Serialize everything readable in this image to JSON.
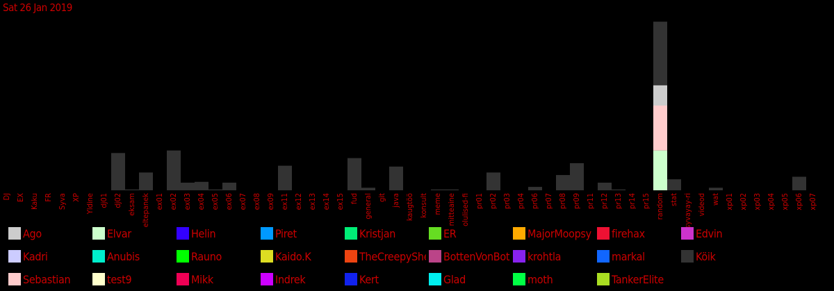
{
  "date_label": "Sat 26 Jan 2019",
  "chart_data": {
    "type": "bar",
    "stacked": true,
    "categories": [
      "DJ",
      "EX",
      "Kaku",
      "FR",
      "Syva",
      "XP",
      "Yldine",
      "dj01",
      "dj02",
      "eksam",
      "eltepanek",
      "ex01",
      "ex02",
      "ex03",
      "ex04",
      "ex05",
      "ex06",
      "ex07",
      "ex08",
      "ex09",
      "ex11",
      "ex12",
      "ex13",
      "ex14",
      "ex15",
      "fud",
      "general",
      "git",
      "java",
      "kaugtöö",
      "konsult",
      "meme",
      "mitteaine",
      "olulised-fi",
      "pr01",
      "pr02",
      "pr03",
      "pr04",
      "pr06",
      "pr07",
      "pr08",
      "pr09",
      "pr11",
      "pr12",
      "pr13",
      "pr14",
      "pr15",
      "random",
      "stat",
      "syvayay-ri",
      "videod",
      "wat",
      "xp01",
      "xp02",
      "xp03",
      "xp04",
      "xp05",
      "xp06",
      "xp07"
    ],
    "series": [
      {
        "name": "Köik",
        "color": "#333333",
        "values": [
          0,
          0,
          0,
          0,
          0,
          0,
          0,
          0,
          44,
          1,
          21,
          0,
          47,
          9,
          10,
          1,
          9,
          0,
          0,
          0,
          29,
          0,
          0,
          0,
          0,
          38,
          3,
          0,
          28,
          0,
          0,
          1,
          1,
          0,
          0,
          21,
          0,
          0,
          4,
          0,
          18,
          32,
          0,
          9,
          1,
          0,
          0,
          75,
          13,
          0,
          0,
          3,
          0,
          0,
          0,
          0,
          0,
          16,
          0
        ]
      },
      {
        "name": "Ago",
        "color": "#cccccc",
        "values": [
          0,
          0,
          0,
          0,
          0,
          0,
          0,
          0,
          0,
          0,
          0,
          0,
          0,
          0,
          0,
          0,
          0,
          0,
          0,
          0,
          0,
          0,
          0,
          0,
          0,
          0,
          0,
          0,
          0,
          0,
          0,
          0,
          0,
          0,
          0,
          0,
          0,
          0,
          0,
          0,
          0,
          0,
          0,
          0,
          0,
          0,
          0,
          24,
          0,
          0,
          0,
          0,
          0,
          0,
          0,
          0,
          0,
          0,
          0
        ]
      },
      {
        "name": "Sebastian",
        "color": "#ffcccc",
        "values": [
          0,
          0,
          0,
          0,
          0,
          0,
          0,
          0,
          0,
          0,
          0,
          0,
          0,
          0,
          0,
          0,
          0,
          0,
          0,
          0,
          0,
          0,
          0,
          0,
          0,
          0,
          0,
          0,
          0,
          0,
          0,
          0,
          0,
          0,
          0,
          0,
          0,
          0,
          0,
          0,
          0,
          0,
          0,
          0,
          0,
          0,
          0,
          53,
          0,
          0,
          0,
          0,
          0,
          0,
          0,
          0,
          0,
          0,
          0
        ]
      },
      {
        "name": "Elvar",
        "color": "#ccffcc",
        "values": [
          0,
          0,
          0,
          0,
          0,
          0,
          0,
          0,
          0,
          0,
          0,
          0,
          0,
          0,
          0,
          0,
          0,
          0,
          0,
          0,
          0,
          0,
          0,
          0,
          0,
          0,
          0,
          0,
          0,
          0,
          0,
          0,
          0,
          0,
          0,
          0,
          0,
          0,
          0,
          0,
          0,
          0,
          0,
          0,
          0,
          0,
          0,
          47,
          0,
          0,
          0,
          0,
          0,
          0,
          0,
          0,
          0,
          0,
          0
        ]
      }
    ],
    "stack_order": [
      "Elvar",
      "Sebastian",
      "Ago",
      "Köik"
    ],
    "ylim": [
      0,
      200
    ]
  },
  "legend": [
    {
      "name": "Ago",
      "color": "#cccccc"
    },
    {
      "name": "Elvar",
      "color": "#ccffcc"
    },
    {
      "name": "Helin",
      "color": "#3300ff"
    },
    {
      "name": "Piret",
      "color": "#0099ff"
    },
    {
      "name": "Kristjan",
      "color": "#00ee77"
    },
    {
      "name": "ER",
      "color": "#66dd22"
    },
    {
      "name": "MajorMoopsy",
      "color": "#ffaa00"
    },
    {
      "name": "firehax",
      "color": "#ee1133"
    },
    {
      "name": "Edvin",
      "color": "#cc33cc"
    },
    {
      "name": "Kadri",
      "color": "#ccccff"
    },
    {
      "name": "Anubis",
      "color": "#00eecc"
    },
    {
      "name": "Rauno",
      "color": "#00ff00"
    },
    {
      "name": "Kaido.K",
      "color": "#dddd22"
    },
    {
      "name": "TheCreepySheep",
      "color": "#ee4411"
    },
    {
      "name": "BottenVonBot",
      "color": "#bb4488"
    },
    {
      "name": "krohtla",
      "color": "#8822ee"
    },
    {
      "name": "markal",
      "color": "#1166ff"
    },
    {
      "name": "Köik",
      "color": "#333333"
    },
    {
      "name": "Sebastian",
      "color": "#ffcccc"
    },
    {
      "name": "test9",
      "color": "#ffffcc"
    },
    {
      "name": "Mikk",
      "color": "#ee0055"
    },
    {
      "name": "Indrek",
      "color": "#cc00ff"
    },
    {
      "name": "Kert",
      "color": "#1122ee"
    },
    {
      "name": "Glad",
      "color": "#00eeee"
    },
    {
      "name": "moth",
      "color": "#00ff44"
    },
    {
      "name": "TankerElite",
      "color": "#aadd22"
    }
  ]
}
